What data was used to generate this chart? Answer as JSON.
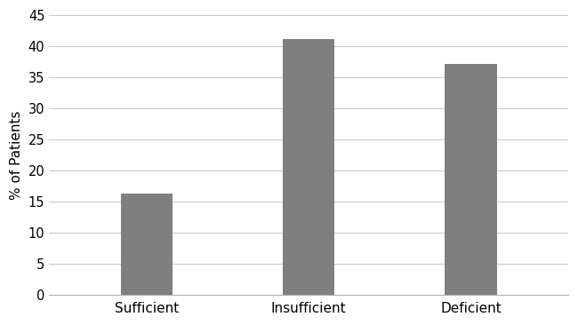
{
  "categories": [
    "Sufficient",
    "Insufficient",
    "Deficient"
  ],
  "values": [
    16.3,
    41.1,
    37.2
  ],
  "bar_color": "#7f7f7f",
  "ylabel": "% of Patients",
  "ylim": [
    0,
    45
  ],
  "yticks": [
    0,
    5,
    10,
    15,
    20,
    25,
    30,
    35,
    40,
    45
  ],
  "bar_width": 0.32,
  "background_color": "#ffffff",
  "grid_color": "#c8c8c8",
  "xlabel_fontsize": 11,
  "ylabel_fontsize": 11,
  "tick_fontsize": 10.5
}
